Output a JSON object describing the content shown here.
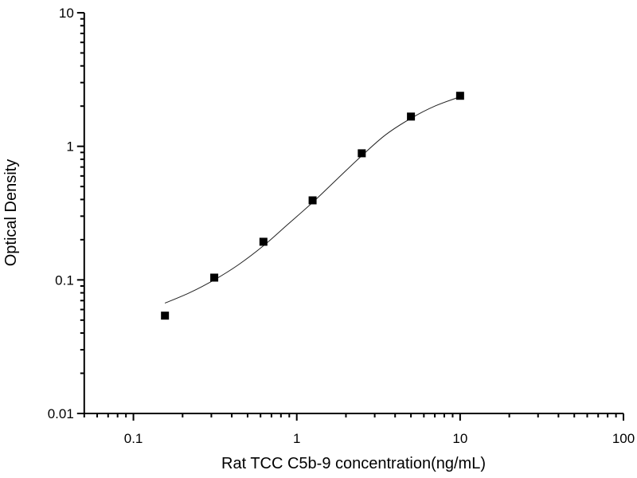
{
  "chart_data": {
    "type": "scatter",
    "title": "",
    "xlabel": "Rat TCC C5b-9 concentration(ng/mL)",
    "ylabel": "Optical Density",
    "xscale": "log",
    "yscale": "log",
    "xlim": [
      0.05,
      100
    ],
    "ylim": [
      0.01,
      10
    ],
    "xticks": [
      0.1,
      1,
      10,
      100
    ],
    "xtick_labels": [
      "0.1",
      "1",
      "10",
      "100"
    ],
    "yticks": [
      0.01,
      0.1,
      1,
      10
    ],
    "ytick_labels": [
      "0.01",
      "0.1",
      "1",
      "10"
    ],
    "grid": false,
    "marker": "square",
    "color": "#000000",
    "series": [
      {
        "x": [
          0.156,
          0.3125,
          0.625,
          1.25,
          2.5,
          5,
          10
        ],
        "y": [
          0.054,
          0.104,
          0.193,
          0.394,
          0.887,
          1.67,
          2.39
        ]
      }
    ],
    "fit_curve": {
      "x": [
        0.156,
        0.22,
        0.3125,
        0.44,
        0.625,
        0.88,
        1.25,
        1.77,
        2.5,
        3.5,
        5,
        7,
        10
      ],
      "y": [
        0.067,
        0.08,
        0.1,
        0.13,
        0.18,
        0.26,
        0.38,
        0.57,
        0.85,
        1.22,
        1.62,
        2.0,
        2.35
      ]
    }
  }
}
